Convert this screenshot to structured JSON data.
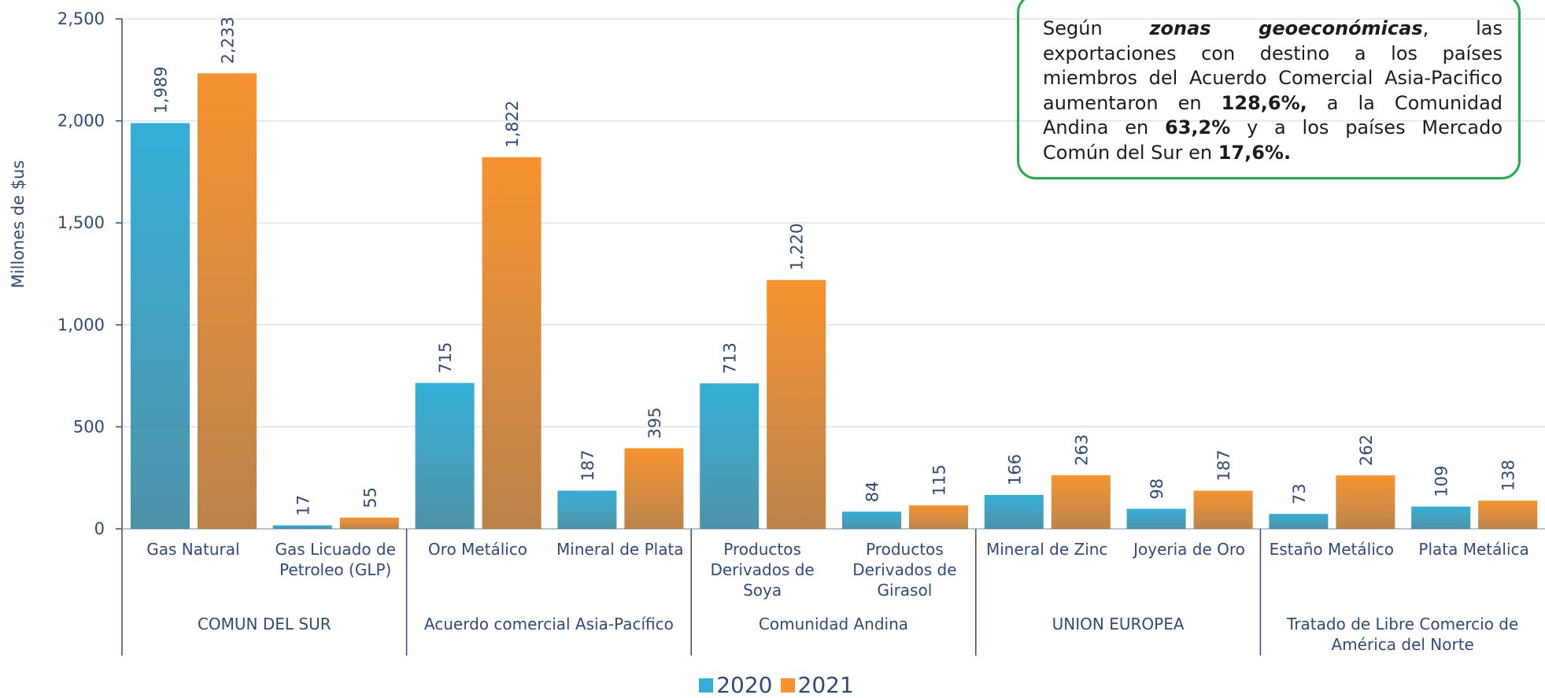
{
  "chart_data": {
    "type": "bar",
    "y_label": "Millones de $us",
    "categories": [
      "Gas Natural",
      "Gas Licuado de Petroleo (GLP)",
      "Oro Metálico",
      "Mineral de Plata",
      "Productos Derivados de Soya",
      "Productos Derivados de Girasol",
      "Mineral de Zinc",
      "Joyeria de Oro",
      "Estaño Metálico",
      "Plata Metálica"
    ],
    "groups": [
      "COMUN DEL SUR",
      "Acuerdo comercial Asia-Pacífico",
      "Comunidad Andina",
      "UNION EUROPEA",
      "Tratado de Libre Comercio de América del Norte"
    ],
    "series": [
      {
        "name": "2020",
        "color": "#33aed6",
        "values": [
          1989,
          17,
          715,
          187,
          713,
          84,
          166,
          98,
          73,
          109
        ],
        "value_labels": [
          "1,989",
          "17",
          "715",
          "187",
          "713",
          "84",
          "166",
          "98",
          "73",
          "109"
        ]
      },
      {
        "name": "2021",
        "color": "#f7922e",
        "values": [
          2233,
          55,
          1822,
          395,
          1220,
          115,
          263,
          187,
          262,
          138
        ],
        "value_labels": [
          "2,233",
          "55",
          "1,822",
          "395",
          "1,220",
          "115",
          "263",
          "187",
          "262",
          "138"
        ]
      }
    ],
    "ylim": [
      0,
      2500
    ],
    "yticks": [
      0,
      500,
      {
        "value": 1000,
        "label": "1,000"
      },
      {
        "value": 1500,
        "label": "1,500"
      },
      {
        "value": 2000,
        "label": "2,000"
      },
      {
        "value": 2500,
        "label": "2,500"
      }
    ],
    "grid": true,
    "legend": "bottom",
    "annotation": [
      "Según ",
      "zonas geoeconómicas",
      ", las exportaciones con destino a los países miembros del Acuerdo Comercial Asia-Pacifico aumentaron en ",
      "128,6%,",
      " a la Comunidad Andina en ",
      "63,2%",
      " y a los países  Mercado Común del Sur en ",
      "17,6%."
    ]
  }
}
